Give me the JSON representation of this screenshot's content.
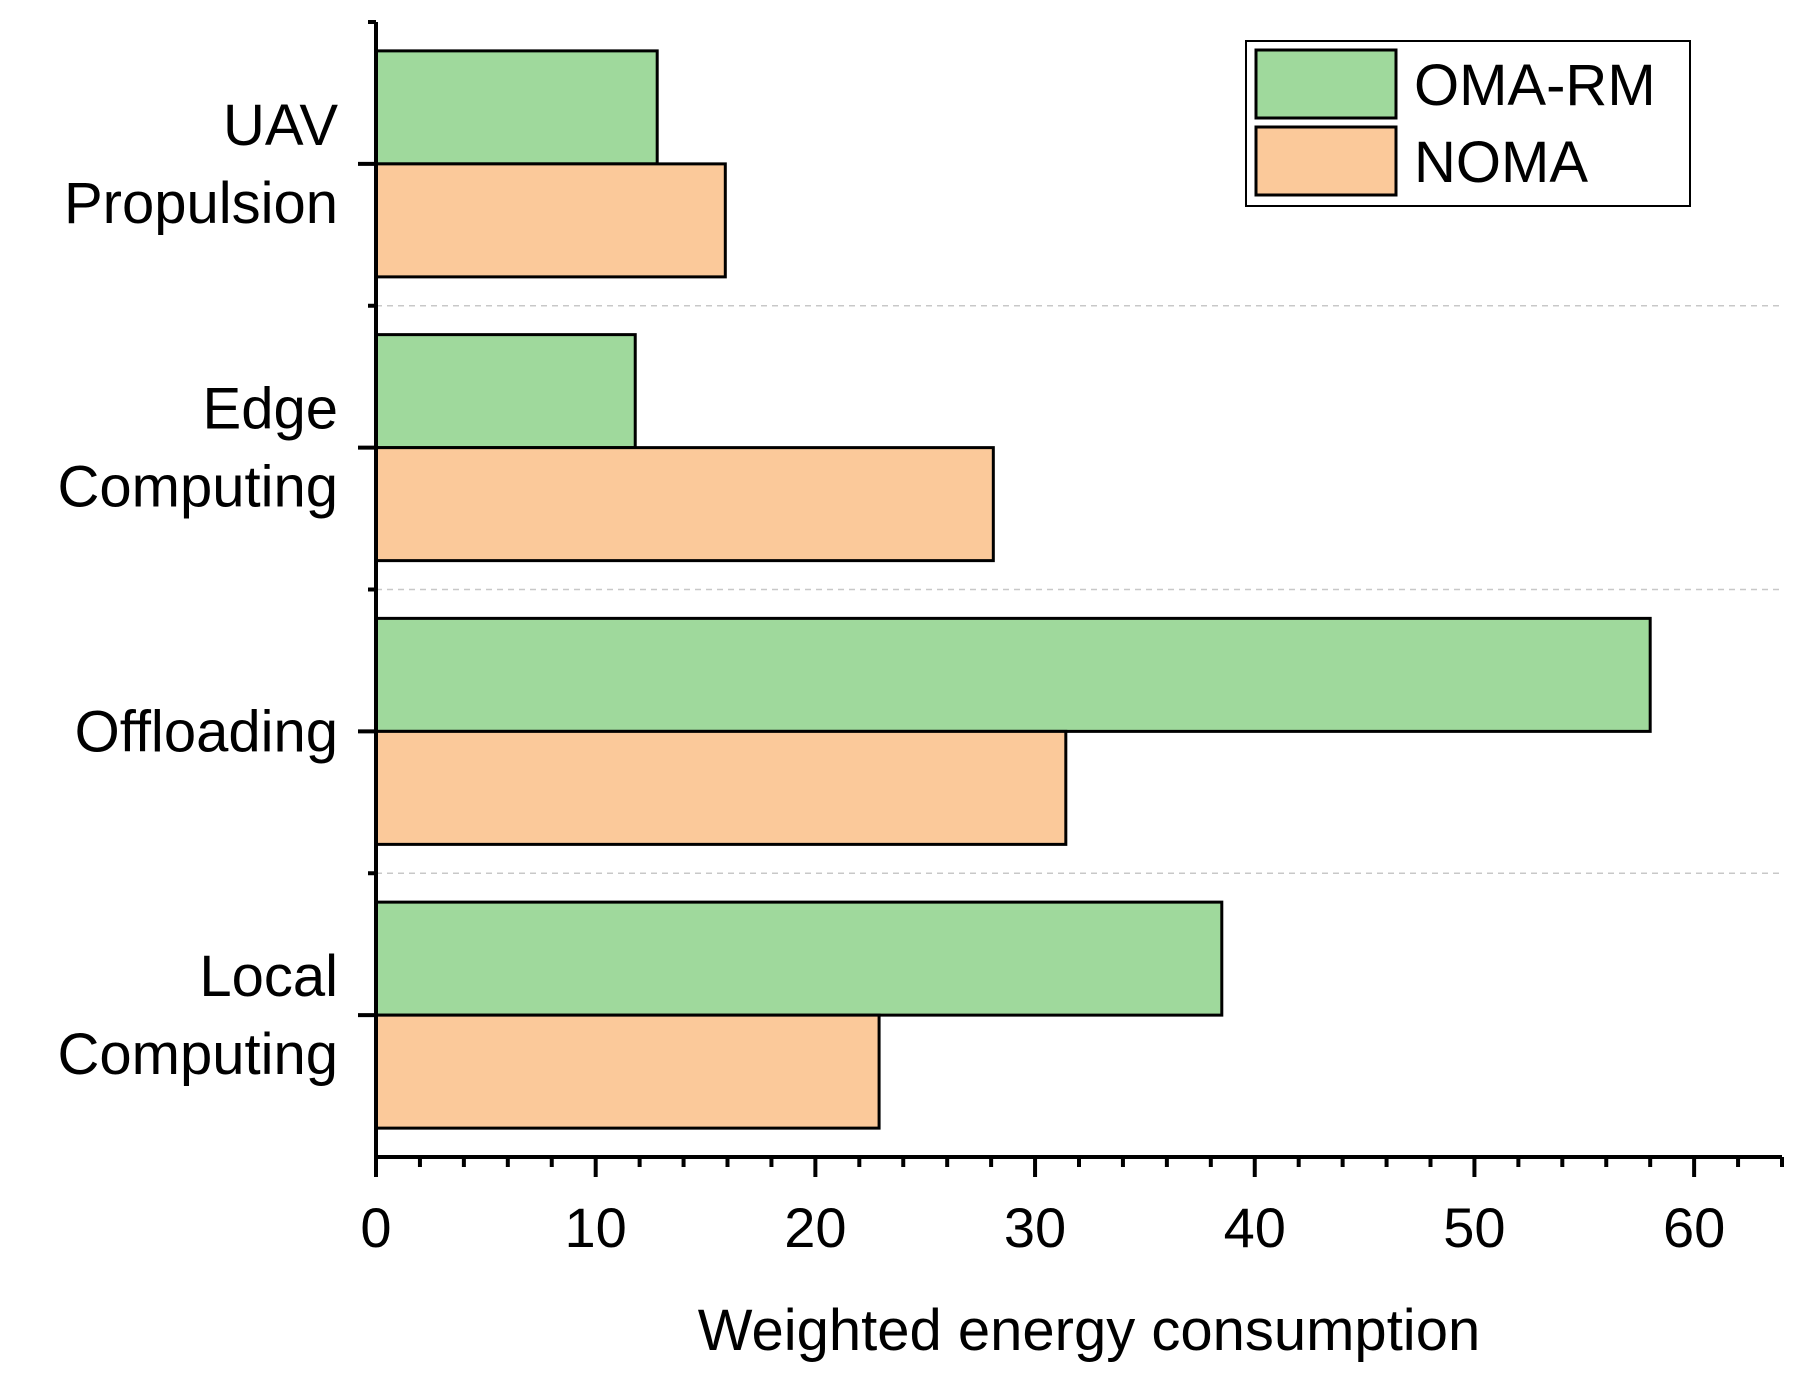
{
  "chart_data": {
    "type": "bar",
    "orientation": "horizontal",
    "title": "",
    "xlabel": "Weighted energy consumption",
    "ylabel": "",
    "xlim": [
      0,
      64
    ],
    "xticks": [
      "0",
      "10",
      "20",
      "30",
      "40",
      "50",
      "60"
    ],
    "categories": [
      {
        "lines": [
          "UAV",
          "Propulsion"
        ]
      },
      {
        "lines": [
          "Edge",
          "Computing"
        ]
      },
      {
        "lines": [
          "Offloading"
        ]
      },
      {
        "lines": [
          "Local",
          "Computing"
        ]
      }
    ],
    "series": [
      {
        "name": "OMA-RM",
        "color": "#9fd99c",
        "values": [
          12.8,
          11.8,
          58.0,
          38.5
        ]
      },
      {
        "name": "NOMA",
        "color": "#fbc99a",
        "values": [
          15.9,
          28.1,
          31.4,
          22.9
        ]
      }
    ],
    "legend_position": "top-right",
    "grid": "dashed separators between categories"
  }
}
